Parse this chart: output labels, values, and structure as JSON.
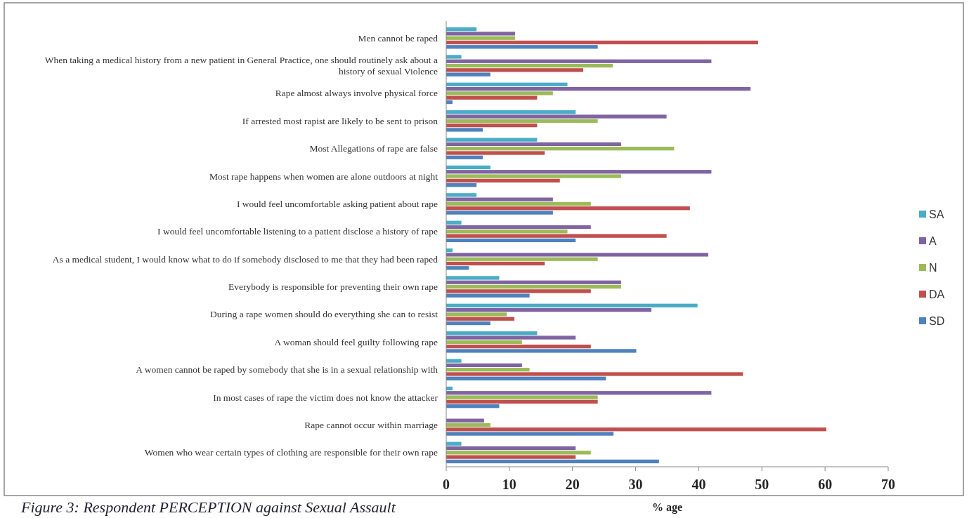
{
  "chart_data": {
    "type": "bar",
    "orientation": "horizontal",
    "xlabel": "% age",
    "categories": [
      "Men cannot be raped",
      "When taking a medical history from a new patient in General Practice, one should routinely ask about a history of sexual Violence",
      "Rape almost always involve physical force",
      "If arrested most rapist are likely to be sent to prison",
      "Most Allegations of rape are false",
      "Most rape happens when women are alone outdoors at night",
      "I would feel uncomfortable asking patient about rape",
      "I would feel uncomfortable listening to a patient disclose a history of rape",
      "As a medical student, I would know what to do if somebody disclosed to me that they had been raped",
      "Everybody is responsible for preventing their own rape",
      "During a rape women should do everything she can to resist",
      "A woman should feel guilty following rape",
      "A women cannot be raped by somebody that she is in a sexual relationship with",
      "In most cases of rape the victim does not know the attacker",
      "Rape cannot occur within marriage",
      "Women who wear certain types of clothing are responsible for their own rape"
    ],
    "series": [
      {
        "name": "SA",
        "color": "#4bacc6",
        "values": [
          4.8,
          2.4,
          19.2,
          20.5,
          14.4,
          7,
          4.8,
          2.4,
          1,
          8.4,
          39.8,
          14.4,
          2.4,
          1,
          0,
          2.4
        ]
      },
      {
        "name": "A",
        "color": "#8064a2",
        "values": [
          10.9,
          42,
          48.2,
          34.9,
          27.7,
          42,
          16.9,
          22.9,
          41.5,
          27.7,
          32.5,
          20.5,
          12,
          42,
          6,
          20.5
        ]
      },
      {
        "name": "N",
        "color": "#9bbb59",
        "values": [
          10.9,
          26.4,
          16.9,
          24,
          36.1,
          27.7,
          22.9,
          19.2,
          24,
          27.7,
          9.6,
          12,
          13.2,
          24,
          7,
          22.9
        ]
      },
      {
        "name": "DA",
        "color": "#c0504d",
        "values": [
          49.4,
          21.7,
          14.4,
          14.4,
          15.6,
          18,
          38.6,
          34.9,
          15.6,
          22.9,
          10.8,
          22.9,
          47,
          24,
          60.2,
          20.5
        ]
      },
      {
        "name": "SD",
        "color": "#4f81bd",
        "values": [
          24,
          7,
          1,
          5.8,
          5.8,
          4.8,
          16.9,
          20.5,
          3.6,
          13.2,
          7,
          30.1,
          25.3,
          8.4,
          26.5,
          33.7
        ]
      }
    ],
    "xlim": [
      0,
      70
    ],
    "xticks": [
      0,
      10,
      20,
      30,
      40,
      50,
      60,
      70
    ],
    "grid": false,
    "legend": "right",
    "annotations": [
      "Figure 3: Respondent PERCEPTION against Sexual Assault"
    ]
  }
}
